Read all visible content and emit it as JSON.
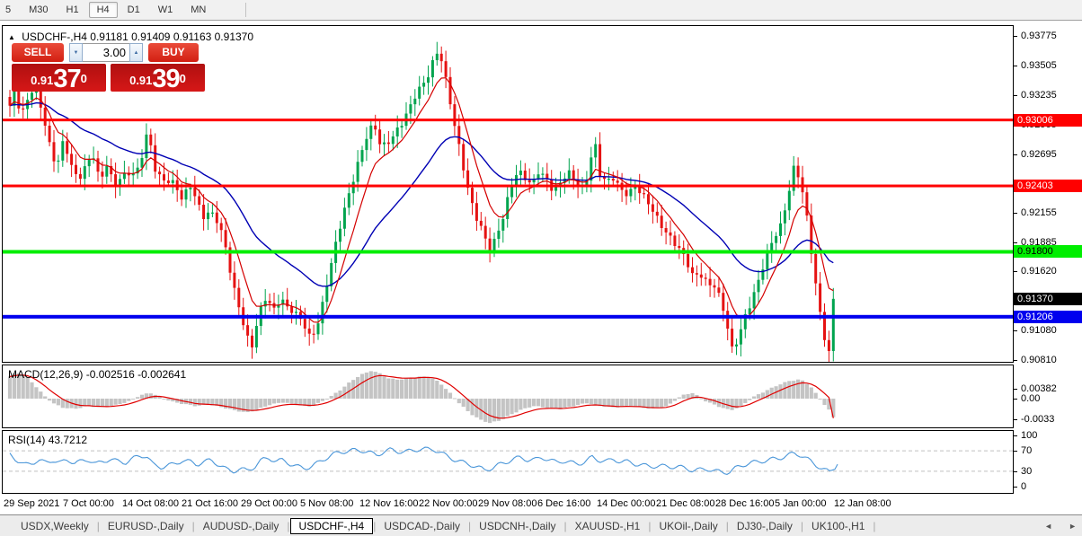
{
  "toolbar": {
    "timeframes": [
      {
        "label": "5",
        "active": false
      },
      {
        "label": "M30",
        "active": false
      },
      {
        "label": "H1",
        "active": false
      },
      {
        "label": "H4",
        "active": true
      },
      {
        "label": "D1",
        "active": false
      },
      {
        "label": "W1",
        "active": false
      },
      {
        "label": "MN",
        "active": false
      }
    ]
  },
  "icons": {
    "title_collapse": "▲",
    "spin_up": "▲",
    "spin_down": "▼",
    "tab_scroll_left": "◄",
    "tab_scroll_right": "►"
  },
  "chart_header": {
    "symbol": "USDCHF-,H4",
    "ohlc_text": "0.91181 0.91409 0.91163 0.91370"
  },
  "trade_panel": {
    "sell_label": "SELL",
    "buy_label": "BUY",
    "volume": "3.00",
    "sell_price": {
      "prefix": "0.91",
      "big": "37",
      "sup": "0"
    },
    "buy_price": {
      "prefix": "0.91",
      "big": "39",
      "sup": "0"
    }
  },
  "chart_data": {
    "type": "candlestick",
    "symbol": "USDCHF-",
    "timeframe": "H4",
    "current_bar": {
      "open": 0.91181,
      "high": 0.91409,
      "low": 0.91163,
      "close": 0.9137
    },
    "up_color": "#00a44e",
    "down_color": "#e51212",
    "ma_fast_color": "#d40000",
    "ma_slow_color": "#0000b4",
    "price_axis": {
      "ticks": [
        {
          "value": 0.93775,
          "label": "0.93775"
        },
        {
          "value": 0.93505,
          "label": "0.93505"
        },
        {
          "value": 0.93235,
          "label": "0.93235"
        },
        {
          "value": 0.92965,
          "label": "0.92965"
        },
        {
          "value": 0.92695,
          "label": "0.92695"
        },
        {
          "value": 0.92155,
          "label": "0.92155"
        },
        {
          "value": 0.91885,
          "label": "0.91885"
        },
        {
          "value": 0.9162,
          "label": "0.91620"
        },
        {
          "value": 0.9108,
          "label": "0.91080"
        },
        {
          "value": 0.9081,
          "label": "0.90810"
        }
      ]
    },
    "hlines": [
      {
        "price": 0.93006,
        "label": "0.93006",
        "color": "#ff0000",
        "thickness": 3,
        "text_color": "#ffffff"
      },
      {
        "price": 0.92403,
        "label": "0.92403",
        "color": "#ff0000",
        "thickness": 3,
        "text_color": "#ffffff"
      },
      {
        "price": 0.918,
        "label": "0.91800",
        "color": "#00ee00",
        "thickness": 4,
        "text_color": "#000000"
      },
      {
        "price": 0.91206,
        "label": "0.91206",
        "color": "#0000ee",
        "thickness": 4,
        "text_color": "#ffffff"
      }
    ],
    "current_price_badge": {
      "price": 0.9137,
      "label": "0.91370",
      "color": "#000000",
      "text_color": "#ffffff"
    },
    "x_labels": [
      "29 Sep 2021",
      "7 Oct 00:00",
      "14 Oct 08:00",
      "21 Oct 16:00",
      "29 Oct 00:00",
      "5 Nov 08:00",
      "12 Nov 16:00",
      "22 Nov 00:00",
      "29 Nov 08:00",
      "6 Dec 16:00",
      "14 Dec 00:00",
      "21 Dec 08:00",
      "28 Dec 16:00",
      "5 Jan 00:00",
      "12 Jan 08:00"
    ],
    "price_path": [
      [
        8,
        0.9312
      ],
      [
        14,
        0.9332
      ],
      [
        20,
        0.93
      ],
      [
        28,
        0.932
      ],
      [
        36,
        0.9334
      ],
      [
        44,
        0.931
      ],
      [
        52,
        0.9278
      ],
      [
        60,
        0.9255
      ],
      [
        68,
        0.9282
      ],
      [
        76,
        0.926
      ],
      [
        84,
        0.9248
      ],
      [
        92,
        0.9258
      ],
      [
        100,
        0.927
      ],
      [
        108,
        0.9242
      ],
      [
        116,
        0.926
      ],
      [
        124,
        0.9242
      ],
      [
        132,
        0.925
      ],
      [
        140,
        0.9252
      ],
      [
        148,
        0.9248
      ],
      [
        156,
        0.927
      ],
      [
        162,
        0.9294
      ],
      [
        168,
        0.926
      ],
      [
        176,
        0.9248
      ],
      [
        184,
        0.9244
      ],
      [
        192,
        0.924
      ],
      [
        200,
        0.9226
      ],
      [
        208,
        0.9244
      ],
      [
        216,
        0.9228
      ],
      [
        224,
        0.9212
      ],
      [
        232,
        0.9215
      ],
      [
        240,
        0.9205
      ],
      [
        248,
        0.9185
      ],
      [
        256,
        0.9152
      ],
      [
        264,
        0.9128
      ],
      [
        271,
        0.9102
      ],
      [
        278,
        0.9092
      ],
      [
        285,
        0.9122
      ],
      [
        293,
        0.914
      ],
      [
        301,
        0.9128
      ],
      [
        309,
        0.9138
      ],
      [
        317,
        0.9128
      ],
      [
        325,
        0.9122
      ],
      [
        333,
        0.9118
      ],
      [
        341,
        0.9104
      ],
      [
        349,
        0.911
      ],
      [
        357,
        0.9135
      ],
      [
        365,
        0.9165
      ],
      [
        373,
        0.9195
      ],
      [
        381,
        0.9222
      ],
      [
        389,
        0.9245
      ],
      [
        397,
        0.9266
      ],
      [
        405,
        0.9284
      ],
      [
        413,
        0.9296
      ],
      [
        421,
        0.9276
      ],
      [
        429,
        0.9282
      ],
      [
        437,
        0.929
      ],
      [
        445,
        0.9298
      ],
      [
        453,
        0.931
      ],
      [
        461,
        0.9326
      ],
      [
        469,
        0.9336
      ],
      [
        476,
        0.9348
      ],
      [
        482,
        0.9364
      ],
      [
        488,
        0.9356
      ],
      [
        494,
        0.9332
      ],
      [
        501,
        0.9302
      ],
      [
        509,
        0.9272
      ],
      [
        517,
        0.9242
      ],
      [
        525,
        0.9216
      ],
      [
        533,
        0.92
      ],
      [
        541,
        0.918
      ],
      [
        549,
        0.9192
      ],
      [
        557,
        0.9214
      ],
      [
        565,
        0.924
      ],
      [
        573,
        0.9254
      ],
      [
        581,
        0.9246
      ],
      [
        589,
        0.924
      ],
      [
        597,
        0.9256
      ],
      [
        605,
        0.9248
      ],
      [
        613,
        0.9236
      ],
      [
        621,
        0.9242
      ],
      [
        629,
        0.9252
      ],
      [
        637,
        0.9244
      ],
      [
        645,
        0.924
      ],
      [
        652,
        0.9252
      ],
      [
        658,
        0.9286
      ],
      [
        664,
        0.925
      ],
      [
        672,
        0.9242
      ],
      [
        680,
        0.9248
      ],
      [
        688,
        0.9238
      ],
      [
        696,
        0.9234
      ],
      [
        704,
        0.924
      ],
      [
        712,
        0.923
      ],
      [
        720,
        0.9222
      ],
      [
        728,
        0.9212
      ],
      [
        736,
        0.9202
      ],
      [
        744,
        0.9192
      ],
      [
        752,
        0.9182
      ],
      [
        760,
        0.9172
      ],
      [
        768,
        0.9158
      ],
      [
        776,
        0.9162
      ],
      [
        784,
        0.9152
      ],
      [
        792,
        0.9148
      ],
      [
        800,
        0.9132
      ],
      [
        806,
        0.9112
      ],
      [
        812,
        0.909
      ],
      [
        818,
        0.9102
      ],
      [
        826,
        0.9122
      ],
      [
        834,
        0.9136
      ],
      [
        842,
        0.9154
      ],
      [
        850,
        0.9176
      ],
      [
        858,
        0.9194
      ],
      [
        866,
        0.9206
      ],
      [
        874,
        0.9232
      ],
      [
        881,
        0.9258
      ],
      [
        887,
        0.9244
      ],
      [
        893,
        0.9222
      ],
      [
        899,
        0.9186
      ],
      [
        905,
        0.915
      ],
      [
        911,
        0.9118
      ],
      [
        917,
        0.9092
      ],
      [
        922,
        0.9082
      ],
      [
        926,
        0.9108
      ],
      [
        929,
        0.9137
      ]
    ],
    "macd": {
      "label": "MACD(12,26,9)",
      "values_text": "-0.002516 -0.002641",
      "main": -0.002516,
      "signal": -0.002641,
      "hist_color": "#c4c4c4",
      "signal_color": "#e00000",
      "axis_labels": [
        "0.00382",
        "0.00",
        "-0.0033"
      ],
      "path": [
        [
          8,
          0.003
        ],
        [
          16,
          0.0036
        ],
        [
          26,
          0.003
        ],
        [
          36,
          0.0018
        ],
        [
          46,
          0.0004
        ],
        [
          56,
          -0.0006
        ],
        [
          66,
          -0.0012
        ],
        [
          80,
          -0.0014
        ],
        [
          95,
          -0.001
        ],
        [
          110,
          -0.0012
        ],
        [
          125,
          -0.0009
        ],
        [
          140,
          -0.0004
        ],
        [
          152,
          0.0004
        ],
        [
          164,
          0.0008
        ],
        [
          176,
          0.0002
        ],
        [
          188,
          -0.0004
        ],
        [
          200,
          -0.0007
        ],
        [
          215,
          -0.001
        ],
        [
          230,
          -0.0008
        ],
        [
          245,
          -0.0012
        ],
        [
          258,
          -0.0016
        ],
        [
          272,
          -0.0019
        ],
        [
          285,
          -0.0014
        ],
        [
          298,
          -0.0008
        ],
        [
          312,
          -0.0005
        ],
        [
          326,
          -0.0008
        ],
        [
          340,
          -0.0011
        ],
        [
          352,
          -0.0006
        ],
        [
          364,
          0.0002
        ],
        [
          376,
          0.0012
        ],
        [
          388,
          0.0024
        ],
        [
          398,
          0.0032
        ],
        [
          410,
          0.0038
        ],
        [
          420,
          0.0034
        ],
        [
          430,
          0.0027
        ],
        [
          442,
          0.0026
        ],
        [
          454,
          0.0028
        ],
        [
          466,
          0.003
        ],
        [
          476,
          0.0029
        ],
        [
          486,
          0.0022
        ],
        [
          496,
          0.001
        ],
        [
          508,
          -0.0006
        ],
        [
          520,
          -0.002
        ],
        [
          532,
          -0.0029
        ],
        [
          542,
          -0.0033
        ],
        [
          552,
          -0.003
        ],
        [
          562,
          -0.0024
        ],
        [
          575,
          -0.0016
        ],
        [
          590,
          -0.001
        ],
        [
          605,
          -0.0012
        ],
        [
          620,
          -0.0014
        ],
        [
          635,
          -0.001
        ],
        [
          650,
          -0.0006
        ],
        [
          665,
          -0.001
        ],
        [
          680,
          -0.0012
        ],
        [
          695,
          -0.001
        ],
        [
          710,
          -0.0012
        ],
        [
          725,
          -0.0014
        ],
        [
          740,
          -0.001
        ],
        [
          755,
          0.0004
        ],
        [
          768,
          0.0008
        ],
        [
          780,
          -0.0002
        ],
        [
          795,
          -0.001
        ],
        [
          810,
          -0.0016
        ],
        [
          822,
          -0.001
        ],
        [
          835,
          0.0002
        ],
        [
          848,
          0.001
        ],
        [
          862,
          0.0018
        ],
        [
          875,
          0.0024
        ],
        [
          888,
          0.0026
        ],
        [
          898,
          0.0018
        ],
        [
          908,
          0.0002
        ],
        [
          918,
          -0.0014
        ],
        [
          929,
          -0.002516
        ]
      ]
    },
    "rsi": {
      "label": "RSI(14)",
      "value_text": "43.7212",
      "value": 43.7212,
      "line_color": "#4a96d9",
      "level_color": "#c0c0c0",
      "axis_labels": [
        "100",
        "70",
        "30",
        "0"
      ],
      "levels": [
        70,
        30
      ],
      "path": [
        [
          8,
          62
        ],
        [
          16,
          52
        ],
        [
          24,
          44
        ],
        [
          32,
          48
        ],
        [
          40,
          54
        ],
        [
          48,
          47
        ],
        [
          56,
          51
        ],
        [
          64,
          44
        ],
        [
          72,
          50
        ],
        [
          80,
          45
        ],
        [
          88,
          49
        ],
        [
          96,
          54
        ],
        [
          104,
          47
        ],
        [
          112,
          51
        ],
        [
          120,
          56
        ],
        [
          128,
          49
        ],
        [
          136,
          45
        ],
        [
          144,
          52
        ],
        [
          152,
          57
        ],
        [
          160,
          60
        ],
        [
          168,
          42
        ],
        [
          176,
          40
        ],
        [
          184,
          44
        ],
        [
          192,
          46
        ],
        [
          200,
          52
        ],
        [
          208,
          48
        ],
        [
          216,
          41
        ],
        [
          224,
          46
        ],
        [
          232,
          50
        ],
        [
          240,
          43
        ],
        [
          248,
          36
        ],
        [
          256,
          32
        ],
        [
          264,
          37
        ],
        [
          272,
          33
        ],
        [
          280,
          38
        ],
        [
          288,
          50
        ],
        [
          296,
          54
        ],
        [
          304,
          47
        ],
        [
          312,
          51
        ],
        [
          320,
          45
        ],
        [
          328,
          41
        ],
        [
          336,
          38
        ],
        [
          344,
          42
        ],
        [
          352,
          48
        ],
        [
          360,
          55
        ],
        [
          368,
          61
        ],
        [
          376,
          65
        ],
        [
          384,
          68
        ],
        [
          392,
          71
        ],
        [
          400,
          72
        ],
        [
          408,
          69
        ],
        [
          416,
          64
        ],
        [
          424,
          69
        ],
        [
          432,
          72
        ],
        [
          440,
          67
        ],
        [
          448,
          65
        ],
        [
          456,
          69
        ],
        [
          464,
          72
        ],
        [
          472,
          74
        ],
        [
          480,
          75
        ],
        [
          488,
          68
        ],
        [
          496,
          60
        ],
        [
          504,
          52
        ],
        [
          512,
          46
        ],
        [
          520,
          41
        ],
        [
          528,
          36
        ],
        [
          536,
          31
        ],
        [
          544,
          36
        ],
        [
          552,
          44
        ],
        [
          560,
          50
        ],
        [
          568,
          56
        ],
        [
          576,
          58
        ],
        [
          584,
          52
        ],
        [
          592,
          50
        ],
        [
          600,
          55
        ],
        [
          608,
          50
        ],
        [
          616,
          47
        ],
        [
          624,
          51
        ],
        [
          632,
          49
        ],
        [
          640,
          47
        ],
        [
          648,
          50
        ],
        [
          656,
          58
        ],
        [
          664,
          50
        ],
        [
          672,
          47
        ],
        [
          680,
          51
        ],
        [
          688,
          47
        ],
        [
          696,
          49
        ],
        [
          704,
          46
        ],
        [
          712,
          44
        ],
        [
          720,
          42
        ],
        [
          728,
          41
        ],
        [
          736,
          39
        ],
        [
          744,
          37
        ],
        [
          752,
          36
        ],
        [
          760,
          34
        ],
        [
          768,
          31
        ],
        [
          776,
          34
        ],
        [
          784,
          37
        ],
        [
          792,
          33
        ],
        [
          800,
          30
        ],
        [
          808,
          28
        ],
        [
          816,
          35
        ],
        [
          824,
          40
        ],
        [
          832,
          44
        ],
        [
          840,
          47
        ],
        [
          848,
          51
        ],
        [
          856,
          55
        ],
        [
          864,
          58
        ],
        [
          872,
          62
        ],
        [
          880,
          66
        ],
        [
          888,
          61
        ],
        [
          896,
          51
        ],
        [
          904,
          41
        ],
        [
          912,
          33
        ],
        [
          920,
          28
        ],
        [
          929,
          43.7212
        ]
      ]
    }
  },
  "tabs": {
    "items": [
      "USDX,Weekly",
      "EURUSD-,Daily",
      "AUDUSD-,Daily",
      "USDCHF-,H4",
      "USDCAD-,Daily",
      "USDCNH-,Daily",
      "XAUUSD-,H1",
      "UKOil-,Daily",
      "DJ30-,Daily",
      "UK100-,H1"
    ],
    "active": "USDCHF-,H4"
  }
}
